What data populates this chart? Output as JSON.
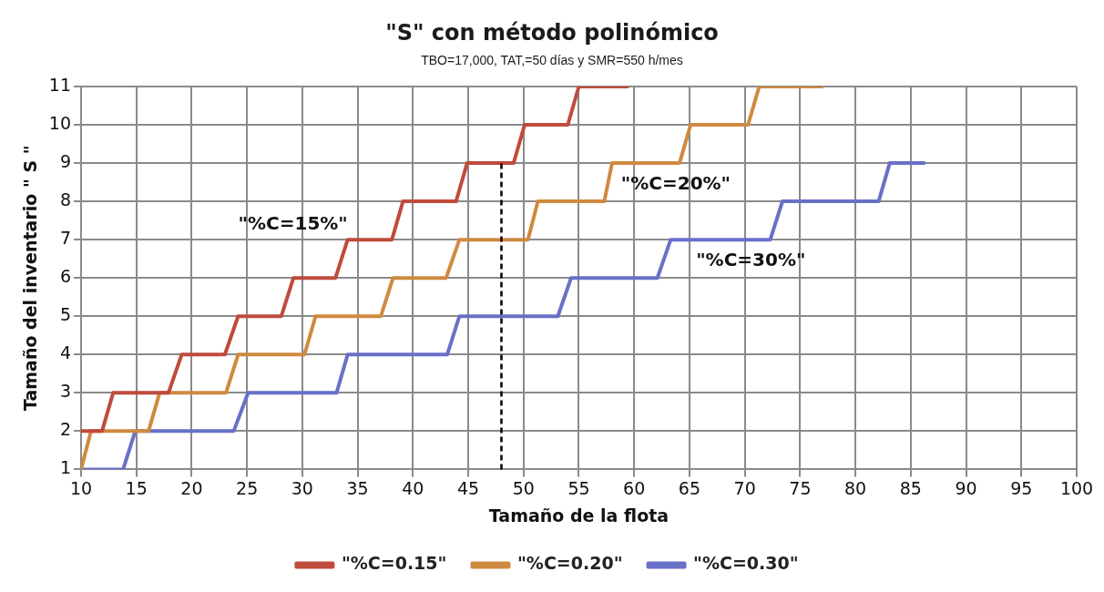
{
  "chart_data": {
    "type": "line",
    "title": "\"S\" con método polinómico",
    "subtitle": "TBO=17,000, TAT,=50 días  y SMR=550 h/mes",
    "xlabel": "Tamaño de la flota",
    "ylabel": "Tamaño del inventario \" S \"",
    "xlim": [
      10,
      100
    ],
    "xticks": [
      10,
      15,
      20,
      25,
      30,
      35,
      40,
      45,
      50,
      55,
      60,
      65,
      70,
      75,
      80,
      85,
      90,
      95,
      100
    ],
    "ylim": [
      1,
      11
    ],
    "yticks": [
      1,
      2,
      3,
      4,
      5,
      6,
      7,
      8,
      9,
      10,
      11
    ],
    "grid": true,
    "legend": "bottom",
    "marker": "none",
    "series": [
      {
        "name": "\"%C=0.15\"",
        "color": "#bf4b3c",
        "x": [
          10,
          11.9,
          12.9,
          17.9,
          19.1,
          23.0,
          24.2,
          28.1,
          29.2,
          33.0,
          34.1,
          38.1,
          39.1,
          43.9,
          44.9,
          49.1,
          50.1,
          54.0,
          55.0,
          59.4
        ],
        "values": [
          2,
          2,
          3,
          3,
          4,
          4,
          5,
          5,
          6,
          6,
          7,
          7,
          8,
          8,
          9,
          9,
          10,
          10,
          11,
          11
        ]
      },
      {
        "name": "\"%C=0.20\"",
        "color": "#cf8a40",
        "x": [
          10,
          10.9,
          16.1,
          17.1,
          23.1,
          24.2,
          30.2,
          31.2,
          37.1,
          38.2,
          43.0,
          44.2,
          50.4,
          51.3,
          57.3,
          58.0,
          64.1,
          65.1,
          70.3,
          71.3,
          77.0
        ],
        "values": [
          1,
          2,
          2,
          3,
          3,
          4,
          4,
          5,
          5,
          6,
          6,
          7,
          7,
          8,
          8,
          9,
          9,
          10,
          10,
          11,
          11
        ]
      },
      {
        "name": "\"%C=0.30\"",
        "color": "#6870c8",
        "x": [
          10,
          13.8,
          14.9,
          23.8,
          25.1,
          33.1,
          34.1,
          43.1,
          44.2,
          53.1,
          54.3,
          62.1,
          63.3,
          72.3,
          73.4,
          82.1,
          83.1,
          86.2
        ],
        "values": [
          1,
          1,
          2,
          2,
          3,
          3,
          4,
          4,
          5,
          5,
          6,
          6,
          7,
          7,
          8,
          8,
          9,
          9
        ]
      }
    ],
    "ref_lines": [
      {
        "axis": "x",
        "value": 48,
        "color": "#000000",
        "line_style": "dashed"
      }
    ],
    "annotations": [
      "\"%C=15%\"",
      "\"%C=20%\"",
      "\"%C=30%\""
    ]
  }
}
